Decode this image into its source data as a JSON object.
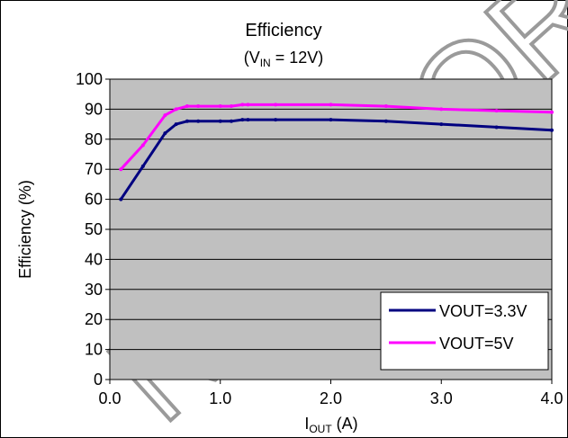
{
  "chart_data": {
    "type": "line",
    "title": "Efficiency",
    "subtitle": {
      "prefix": "(V",
      "subscript": "IN",
      "suffix": " = 12V)"
    },
    "xlabel": {
      "main": "I",
      "subscript": "OUT",
      "suffix": " (A)"
    },
    "ylabel": "Efficiency (%)",
    "xlim": [
      0,
      4
    ],
    "ylim": [
      0,
      100
    ],
    "x_ticks": [
      "0.0",
      "1.0",
      "2.0",
      "3.0",
      "4.0"
    ],
    "y_ticks": [
      "0",
      "10",
      "20",
      "30",
      "40",
      "50",
      "60",
      "70",
      "80",
      "90",
      "100"
    ],
    "grid": true,
    "plot_background": "#c0c0c0",
    "legend_position": "bottom-right",
    "series": [
      {
        "name": "VOUT=3.3V",
        "color": "#000080",
        "x": [
          0.1,
          0.3,
          0.5,
          0.6,
          0.7,
          0.8,
          1.0,
          1.1,
          1.2,
          1.25,
          1.5,
          2.0,
          2.5,
          3.0,
          3.5,
          4.0
        ],
        "y": [
          60,
          71,
          82,
          85,
          86,
          86,
          86,
          86,
          86.5,
          86.5,
          86.5,
          86.5,
          86,
          85,
          84,
          83
        ]
      },
      {
        "name": "VOUT=5V",
        "color": "#ff00ff",
        "x": [
          0.1,
          0.3,
          0.5,
          0.6,
          0.7,
          0.8,
          1.0,
          1.1,
          1.2,
          1.25,
          1.5,
          2.0,
          2.5,
          3.0,
          3.5,
          4.0
        ],
        "y": [
          70,
          78,
          88,
          90,
          91,
          91,
          91,
          91,
          91.5,
          91.5,
          91.5,
          91.5,
          91,
          90,
          89.5,
          89
        ]
      }
    ]
  },
  "watermark": "NOT FOR"
}
